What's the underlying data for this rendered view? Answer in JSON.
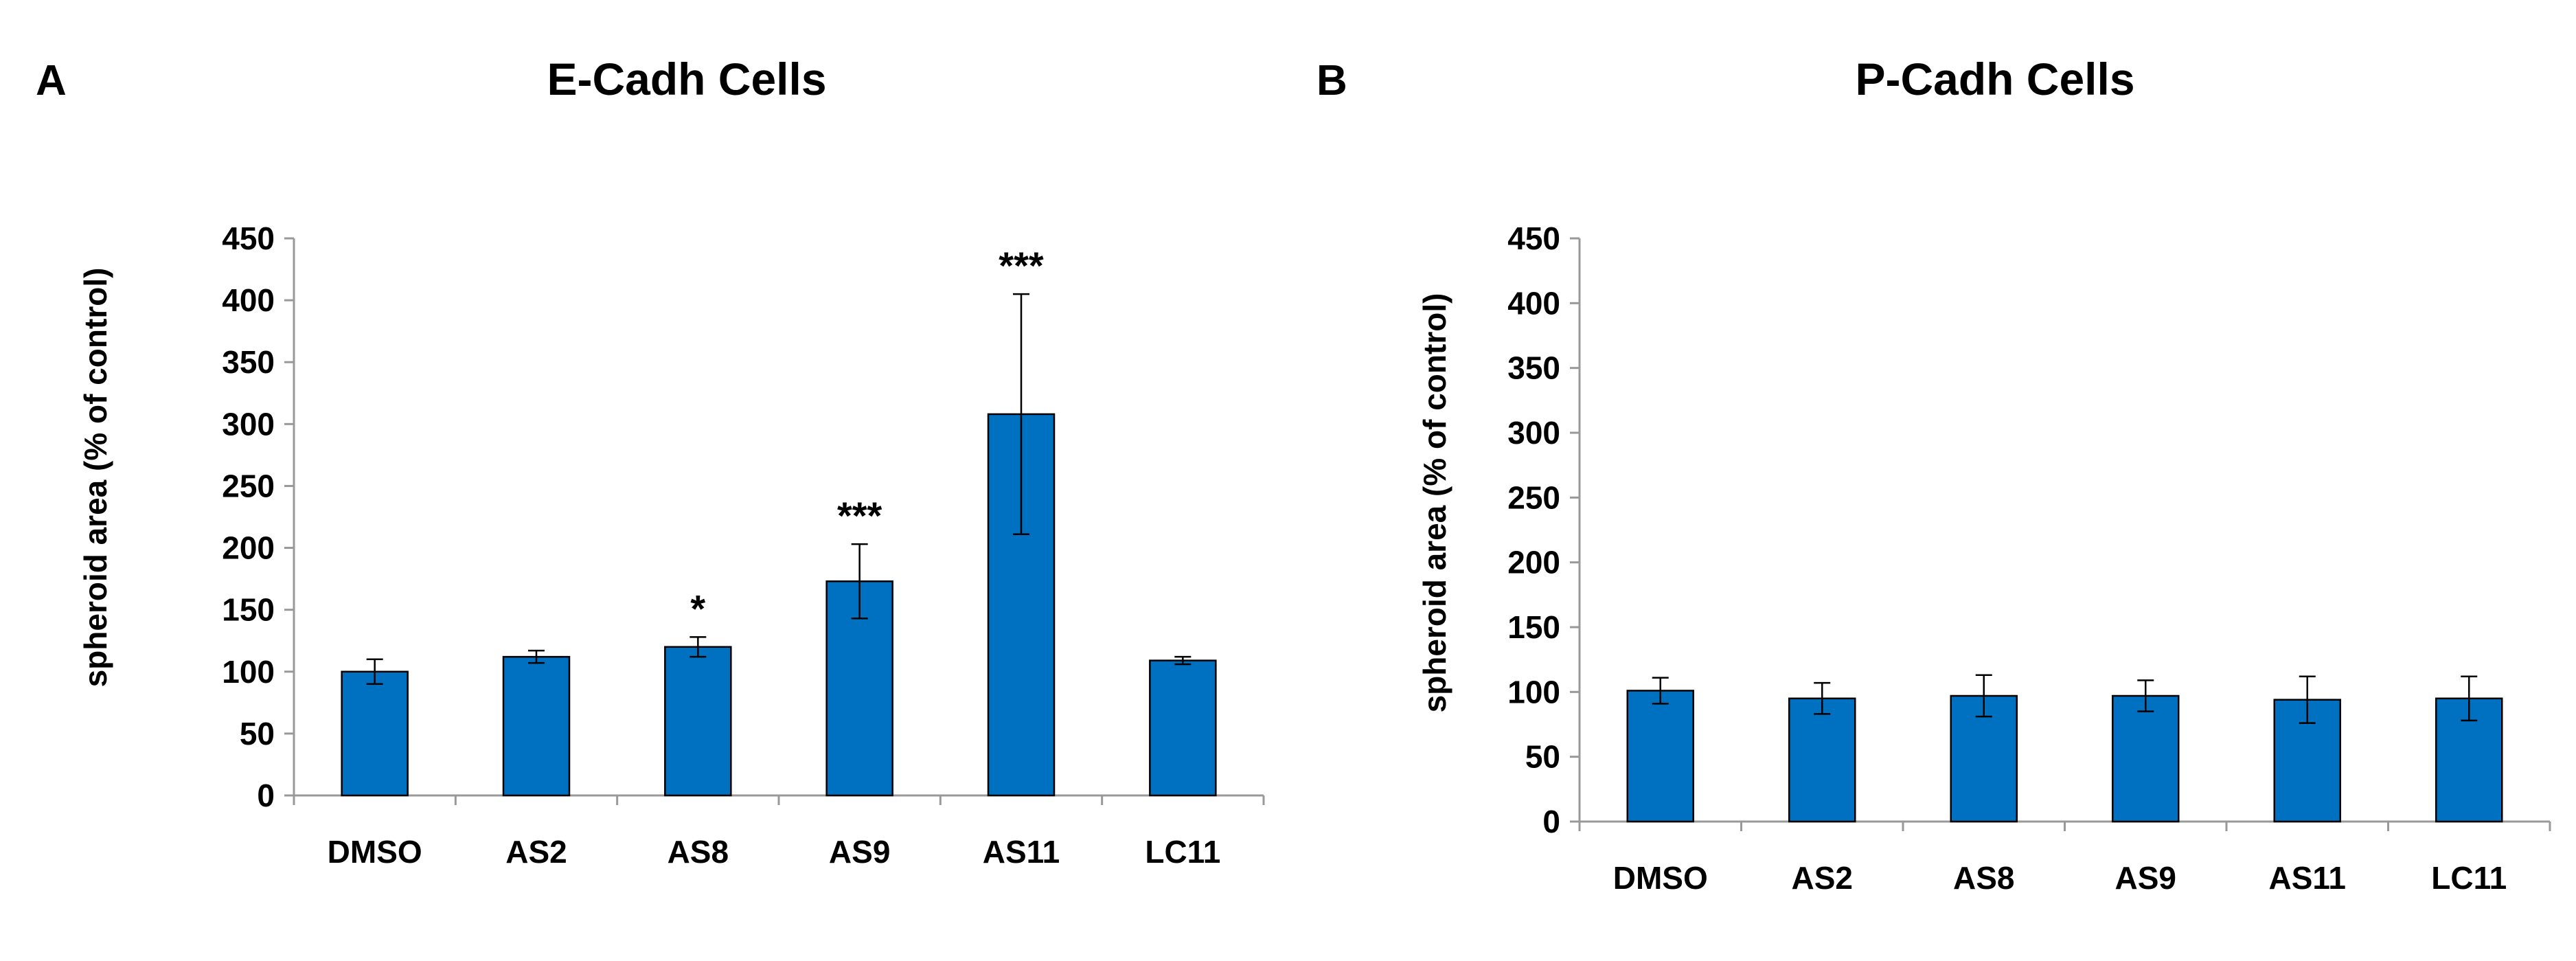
{
  "colors": {
    "bar": "#0070C0",
    "bar_edge": "#000000",
    "axis": "#999999"
  },
  "chart_data": [
    {
      "panel": "A",
      "type": "bar",
      "title": "E-Cadh Cells",
      "xlabel": "",
      "ylabel": "spheroid area (% of control)",
      "ylim": [
        0,
        450
      ],
      "yticks": [
        0,
        50,
        100,
        150,
        200,
        250,
        300,
        350,
        400,
        450
      ],
      "categories": [
        "DMSO",
        "AS2",
        "AS8",
        "AS9",
        "AS11",
        "LC11"
      ],
      "values": [
        100,
        112,
        120,
        173,
        308,
        109
      ],
      "errors": [
        10,
        5,
        8,
        30,
        97,
        3
      ],
      "significance": [
        "",
        "",
        "*",
        "***",
        "***",
        ""
      ],
      "grid": false
    },
    {
      "panel": "B",
      "type": "bar",
      "title": "P-Cadh Cells",
      "xlabel": "",
      "ylabel": "spheroid area (% of control)",
      "ylim": [
        0,
        450
      ],
      "yticks": [
        0,
        50,
        100,
        150,
        200,
        250,
        300,
        350,
        400,
        450
      ],
      "categories": [
        "DMSO",
        "AS2",
        "AS8",
        "AS9",
        "AS11",
        "LC11"
      ],
      "values": [
        101,
        95,
        97,
        97,
        94,
        95
      ],
      "errors": [
        10,
        12,
        16,
        12,
        18,
        17
      ],
      "significance": [
        "",
        "",
        "",
        "",
        "",
        ""
      ],
      "grid": false
    }
  ]
}
